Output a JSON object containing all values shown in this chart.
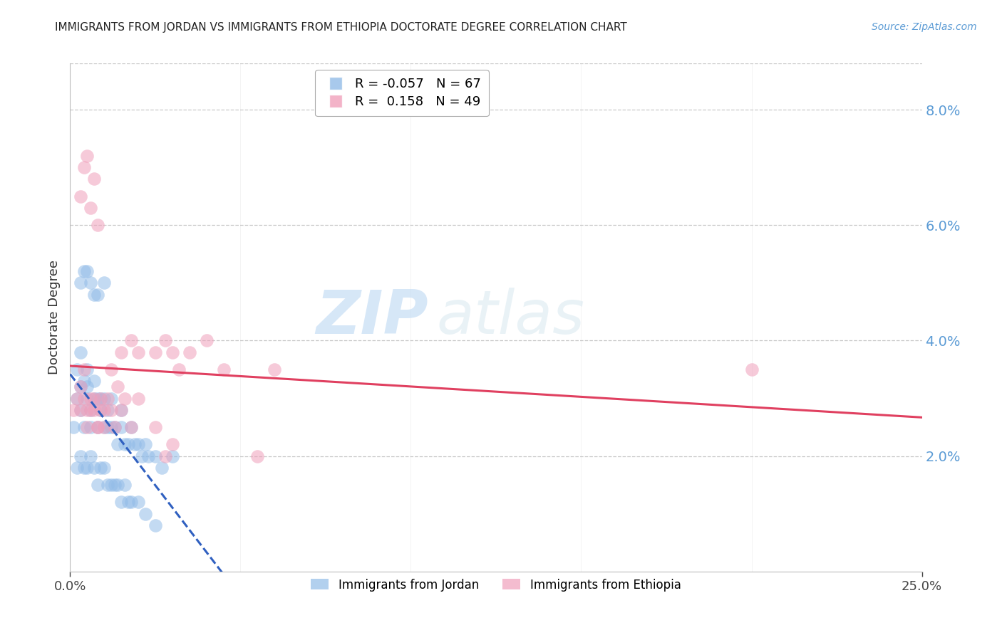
{
  "title": "IMMIGRANTS FROM JORDAN VS IMMIGRANTS FROM ETHIOPIA DOCTORATE DEGREE CORRELATION CHART",
  "source": "Source: ZipAtlas.com",
  "ylabel": "Doctorate Degree",
  "ytick_values": [
    0.02,
    0.04,
    0.06,
    0.08
  ],
  "xlim": [
    0.0,
    0.25
  ],
  "ylim": [
    0.0,
    0.088
  ],
  "jordan_r": -0.057,
  "jordan_n": 67,
  "ethiopia_r": 0.158,
  "ethiopia_n": 49,
  "jordan_color": "#92bce8",
  "ethiopia_color": "#f0a0bb",
  "jordan_line_color": "#3060c0",
  "ethiopia_line_color": "#e04060",
  "watermark_zip": "ZIP",
  "watermark_atlas": "atlas",
  "background_color": "#ffffff",
  "title_color": "#222222",
  "axis_tick_color": "#5b9bd5",
  "jordan_x": [
    0.001,
    0.002,
    0.002,
    0.003,
    0.003,
    0.003,
    0.004,
    0.004,
    0.005,
    0.005,
    0.005,
    0.006,
    0.006,
    0.007,
    0.007,
    0.008,
    0.008,
    0.009,
    0.009,
    0.01,
    0.01,
    0.011,
    0.011,
    0.012,
    0.012,
    0.013,
    0.014,
    0.015,
    0.015,
    0.016,
    0.017,
    0.018,
    0.019,
    0.02,
    0.021,
    0.022,
    0.023,
    0.025,
    0.027,
    0.03,
    0.002,
    0.003,
    0.004,
    0.005,
    0.006,
    0.007,
    0.008,
    0.009,
    0.01,
    0.011,
    0.012,
    0.013,
    0.014,
    0.015,
    0.016,
    0.017,
    0.018,
    0.02,
    0.022,
    0.025,
    0.003,
    0.004,
    0.005,
    0.006,
    0.007,
    0.008,
    0.01
  ],
  "jordan_y": [
    0.025,
    0.03,
    0.035,
    0.028,
    0.032,
    0.038,
    0.025,
    0.033,
    0.03,
    0.032,
    0.035,
    0.025,
    0.028,
    0.03,
    0.033,
    0.025,
    0.03,
    0.028,
    0.03,
    0.025,
    0.03,
    0.025,
    0.028,
    0.025,
    0.03,
    0.025,
    0.022,
    0.025,
    0.028,
    0.022,
    0.022,
    0.025,
    0.022,
    0.022,
    0.02,
    0.022,
    0.02,
    0.02,
    0.018,
    0.02,
    0.018,
    0.02,
    0.018,
    0.018,
    0.02,
    0.018,
    0.015,
    0.018,
    0.018,
    0.015,
    0.015,
    0.015,
    0.015,
    0.012,
    0.015,
    0.012,
    0.012,
    0.012,
    0.01,
    0.008,
    0.05,
    0.052,
    0.052,
    0.05,
    0.048,
    0.048,
    0.05
  ],
  "ethiopia_x": [
    0.001,
    0.002,
    0.003,
    0.004,
    0.005,
    0.006,
    0.007,
    0.008,
    0.009,
    0.01,
    0.011,
    0.012,
    0.013,
    0.014,
    0.015,
    0.016,
    0.018,
    0.02,
    0.003,
    0.004,
    0.005,
    0.006,
    0.007,
    0.008,
    0.009,
    0.01,
    0.012,
    0.015,
    0.018,
    0.02,
    0.025,
    0.028,
    0.03,
    0.032,
    0.035,
    0.04,
    0.045,
    0.055,
    0.06,
    0.2,
    0.025,
    0.028,
    0.03,
    0.003,
    0.004,
    0.005,
    0.006,
    0.007,
    0.008
  ],
  "ethiopia_y": [
    0.028,
    0.03,
    0.028,
    0.03,
    0.025,
    0.028,
    0.03,
    0.025,
    0.028,
    0.025,
    0.03,
    0.028,
    0.025,
    0.032,
    0.028,
    0.03,
    0.025,
    0.03,
    0.032,
    0.035,
    0.028,
    0.03,
    0.028,
    0.025,
    0.03,
    0.028,
    0.035,
    0.038,
    0.04,
    0.038,
    0.038,
    0.04,
    0.038,
    0.035,
    0.038,
    0.04,
    0.035,
    0.02,
    0.035,
    0.035,
    0.025,
    0.02,
    0.022,
    0.065,
    0.07,
    0.072,
    0.063,
    0.068,
    0.06
  ]
}
